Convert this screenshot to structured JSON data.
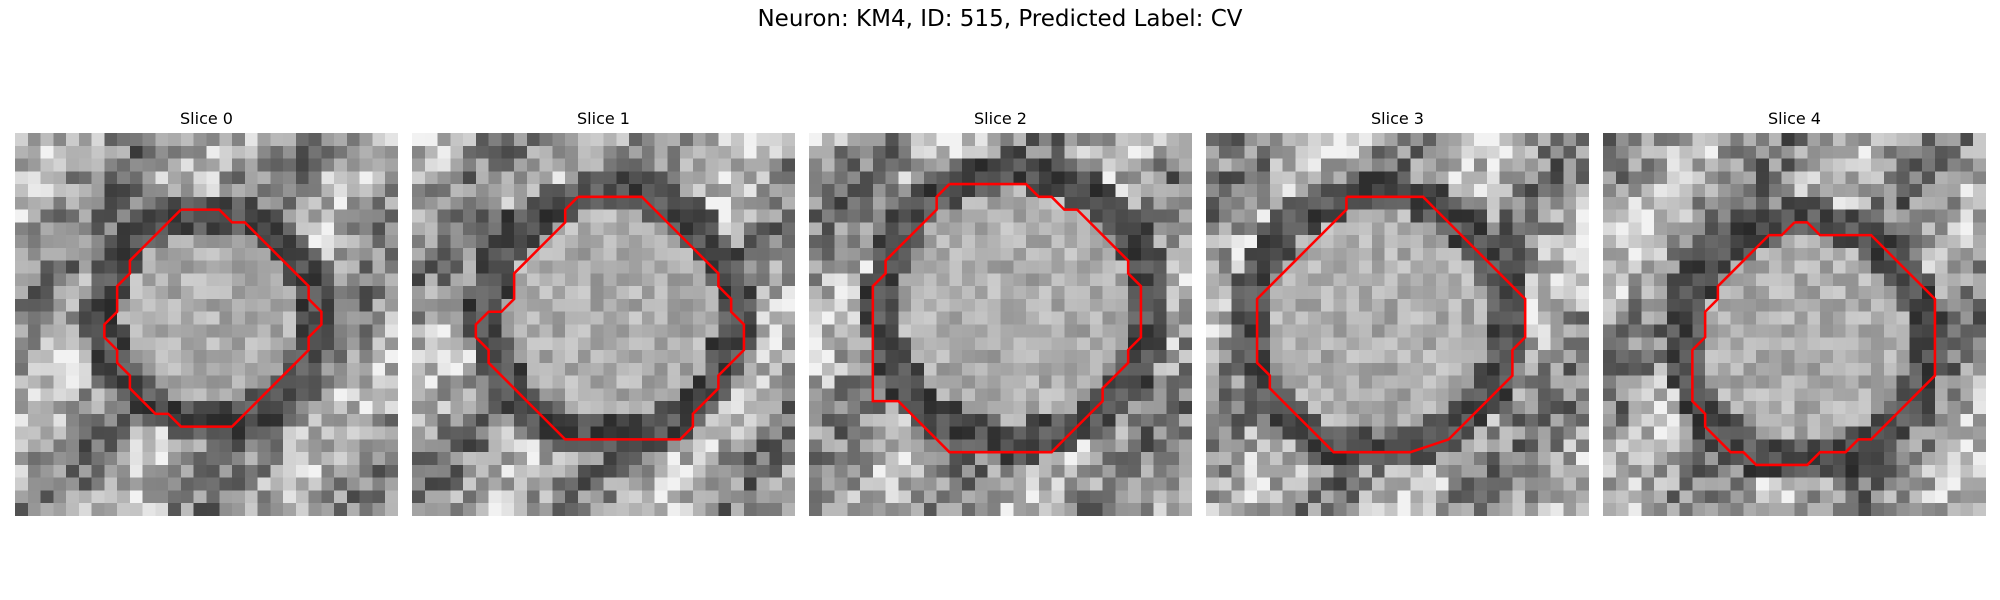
{
  "figure": {
    "title": "Neuron: KM4, ID: 515, Predicted Label: CV"
  },
  "colors": {
    "contour": "#ff0000",
    "colormap": "gray"
  },
  "panels": [
    {
      "title": "Slice 0",
      "contour": [
        [
          13,
          6
        ],
        [
          16,
          6
        ],
        [
          17,
          7
        ],
        [
          18,
          7
        ],
        [
          19,
          8
        ],
        [
          20,
          9
        ],
        [
          21,
          10
        ],
        [
          22,
          11
        ],
        [
          23,
          12
        ],
        [
          23,
          13
        ],
        [
          24,
          14
        ],
        [
          24,
          15
        ],
        [
          23,
          16
        ],
        [
          23,
          17
        ],
        [
          22,
          18
        ],
        [
          21,
          19
        ],
        [
          20,
          20
        ],
        [
          19,
          21
        ],
        [
          18,
          22
        ],
        [
          17,
          23
        ],
        [
          13,
          23
        ],
        [
          12,
          22
        ],
        [
          11,
          22
        ],
        [
          10,
          21
        ],
        [
          9,
          20
        ],
        [
          9,
          19
        ],
        [
          8,
          18
        ],
        [
          8,
          17
        ],
        [
          7,
          16
        ],
        [
          7,
          15
        ],
        [
          8,
          14
        ],
        [
          8,
          12
        ],
        [
          9,
          11
        ],
        [
          9,
          10
        ],
        [
          10,
          9
        ],
        [
          11,
          8
        ],
        [
          12,
          7
        ],
        [
          13,
          6
        ]
      ]
    },
    {
      "title": "Slice 1",
      "contour": [
        [
          13,
          5
        ],
        [
          18,
          5
        ],
        [
          19,
          6
        ],
        [
          20,
          7
        ],
        [
          21,
          8
        ],
        [
          22,
          9
        ],
        [
          23,
          10
        ],
        [
          24,
          11
        ],
        [
          24,
          12
        ],
        [
          25,
          13
        ],
        [
          25,
          14
        ],
        [
          26,
          15
        ],
        [
          26,
          17
        ],
        [
          25,
          18
        ],
        [
          24,
          19
        ],
        [
          24,
          20
        ],
        [
          23,
          21
        ],
        [
          22,
          22
        ],
        [
          22,
          23
        ],
        [
          21,
          24
        ],
        [
          12,
          24
        ],
        [
          11,
          23
        ],
        [
          10,
          22
        ],
        [
          9,
          21
        ],
        [
          8,
          20
        ],
        [
          7,
          19
        ],
        [
          6,
          18
        ],
        [
          6,
          17
        ],
        [
          5,
          16
        ],
        [
          5,
          15
        ],
        [
          6,
          14
        ],
        [
          7,
          14
        ],
        [
          8,
          13
        ],
        [
          8,
          11
        ],
        [
          9,
          10
        ],
        [
          10,
          9
        ],
        [
          11,
          8
        ],
        [
          12,
          7
        ],
        [
          12,
          6
        ],
        [
          13,
          5
        ]
      ]
    },
    {
      "title": "Slice 2",
      "contour": [
        [
          11,
          4
        ],
        [
          17,
          4
        ],
        [
          18,
          5
        ],
        [
          19,
          5
        ],
        [
          20,
          6
        ],
        [
          21,
          6
        ],
        [
          22,
          7
        ],
        [
          23,
          8
        ],
        [
          24,
          9
        ],
        [
          25,
          10
        ],
        [
          25,
          11
        ],
        [
          26,
          12
        ],
        [
          26,
          16
        ],
        [
          25,
          17
        ],
        [
          25,
          18
        ],
        [
          24,
          19
        ],
        [
          23,
          20
        ],
        [
          23,
          21
        ],
        [
          22,
          22
        ],
        [
          21,
          23
        ],
        [
          20,
          24
        ],
        [
          19,
          25
        ],
        [
          11,
          25
        ],
        [
          10,
          24
        ],
        [
          9,
          23
        ],
        [
          8,
          22
        ],
        [
          7,
          21
        ],
        [
          5,
          21
        ],
        [
          5,
          12
        ],
        [
          6,
          11
        ],
        [
          6,
          10
        ],
        [
          7,
          9
        ],
        [
          8,
          8
        ],
        [
          9,
          7
        ],
        [
          10,
          6
        ],
        [
          10,
          5
        ],
        [
          11,
          4
        ]
      ]
    },
    {
      "title": "Slice 3",
      "contour": [
        [
          11,
          5
        ],
        [
          17,
          5
        ],
        [
          18,
          6
        ],
        [
          19,
          7
        ],
        [
          20,
          8
        ],
        [
          21,
          9
        ],
        [
          23,
          11
        ],
        [
          25,
          13
        ],
        [
          25,
          16
        ],
        [
          24,
          17
        ],
        [
          24,
          19
        ],
        [
          23,
          20
        ],
        [
          22,
          21
        ],
        [
          21,
          22
        ],
        [
          20,
          23
        ],
        [
          19,
          24
        ],
        [
          16,
          25
        ],
        [
          10,
          25
        ],
        [
          9,
          24
        ],
        [
          8,
          23
        ],
        [
          7,
          22
        ],
        [
          6,
          21
        ],
        [
          5,
          20
        ],
        [
          5,
          19
        ],
        [
          4,
          18
        ],
        [
          4,
          16
        ],
        [
          4,
          14
        ],
        [
          4,
          13
        ],
        [
          5,
          12
        ],
        [
          6,
          11
        ],
        [
          7,
          10
        ],
        [
          8,
          9
        ],
        [
          9,
          8
        ],
        [
          10,
          7
        ],
        [
          11,
          6
        ],
        [
          11,
          5
        ]
      ]
    },
    {
      "title": "Slice 4",
      "contour": [
        [
          15,
          7
        ],
        [
          16,
          7
        ],
        [
          17,
          8
        ],
        [
          21,
          8
        ],
        [
          22,
          9
        ],
        [
          23,
          10
        ],
        [
          24,
          11
        ],
        [
          25,
          12
        ],
        [
          26,
          13
        ],
        [
          26,
          19
        ],
        [
          25,
          20
        ],
        [
          24,
          21
        ],
        [
          23,
          22
        ],
        [
          22,
          23
        ],
        [
          21,
          24
        ],
        [
          20,
          24
        ],
        [
          19,
          25
        ],
        [
          17,
          25
        ],
        [
          16,
          26
        ],
        [
          12,
          26
        ],
        [
          11,
          25
        ],
        [
          10,
          25
        ],
        [
          9,
          24
        ],
        [
          8,
          23
        ],
        [
          8,
          22
        ],
        [
          7,
          21
        ],
        [
          7,
          17
        ],
        [
          8,
          16
        ],
        [
          8,
          14
        ],
        [
          9,
          13
        ],
        [
          9,
          12
        ],
        [
          10,
          11
        ],
        [
          11,
          10
        ],
        [
          12,
          9
        ],
        [
          13,
          8
        ],
        [
          14,
          8
        ],
        [
          15,
          7
        ]
      ]
    }
  ]
}
